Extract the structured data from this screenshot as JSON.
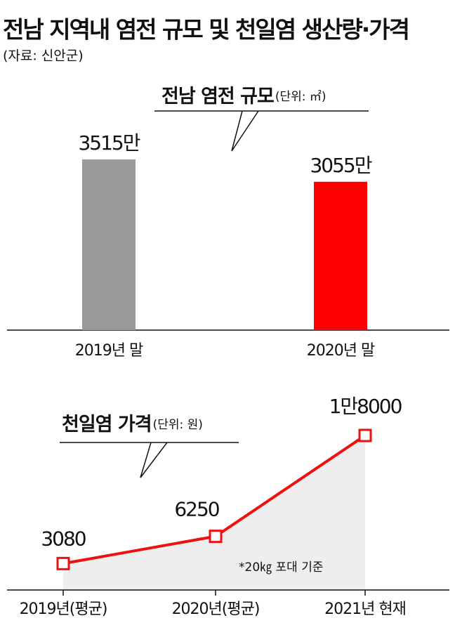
{
  "title": "전남 지역내 염전 규모 및 천일염 생산량·가격",
  "subtitle": "(자료: 신안군)",
  "chart_data": [
    {
      "type": "bar",
      "title": "전남 염전 규모",
      "unit": "(단위: ㎡)",
      "categories": [
        "2019년 말",
        "2020년 말"
      ],
      "values": [
        3515,
        3055
      ],
      "value_labels": [
        "3515만",
        "3055만"
      ],
      "colors": [
        "#999999",
        "#ff0000"
      ]
    },
    {
      "type": "line",
      "title": "천일염 가격",
      "unit": "(단위: 원)",
      "categories": [
        "2019년(평균)",
        "2020년(평균)",
        "2021년 현재"
      ],
      "values": [
        3080,
        6250,
        18000
      ],
      "value_labels": [
        "3080",
        "6250",
        "1만8000"
      ],
      "color": "#ee1111",
      "area_color": "#eeeeee",
      "note": "*20㎏ 포대 기준"
    }
  ]
}
